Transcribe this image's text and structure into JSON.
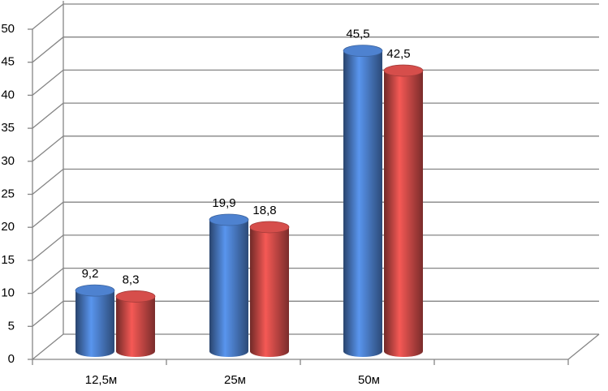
{
  "chart_data": {
    "type": "bar3d",
    "categories": [
      "12,5м",
      "25м",
      "50м",
      null
    ],
    "series": [
      {
        "color": "#4a7cc6",
        "values": [
          9.2,
          19.9,
          45.5,
          null
        ],
        "value_labels": [
          "9,2",
          "19,9",
          "45,5",
          null
        ]
      },
      {
        "color": "#cc4a47",
        "values": [
          8.3,
          18.8,
          42.5,
          null
        ],
        "value_labels": [
          "8,3",
          "18,8",
          "42,5",
          null
        ]
      }
    ],
    "ylim": [
      0,
      50
    ],
    "yticks": [
      0,
      5,
      10,
      15,
      20,
      25,
      30,
      35,
      40,
      45,
      50
    ],
    "grid": true
  }
}
